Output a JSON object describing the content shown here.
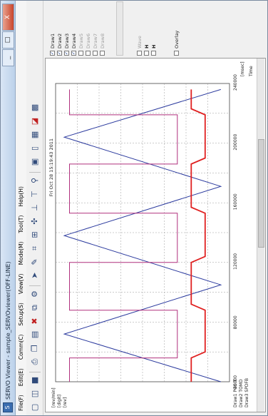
{
  "window": {
    "title": "SERVO Viewer - sample_SERVOviewer(OFF-LINE)",
    "icon_name": "app-icon",
    "buttons": [
      "_",
      "□",
      "X"
    ]
  },
  "menu": [
    "File(F)",
    "Edit(E)",
    "Comm(C)",
    "Setup(S)",
    "View(V)",
    "Mode(M)",
    "Tool(T)",
    "Help(H)"
  ],
  "toolbar": {
    "icons": [
      "new-file-icon",
      "open-icon",
      "save-icon",
      "print-icon",
      "copy-icon",
      "paste-icon",
      "stop-icon",
      "capture-icon",
      "settings-icon",
      "arrow-icon",
      "pen-icon",
      "zoom-fit-icon",
      "scale-icon",
      "move-icon",
      "cursor-icon",
      "cursor2-icon",
      "tune-icon",
      "image-icon",
      "page-icon",
      "window-icon",
      "chart-icon"
    ]
  },
  "plot": {
    "timestamp": "Fri Oct 28 15:19:43 2011",
    "y_labels": [
      "[rev/min]",
      "[digit]",
      "[rev]"
    ],
    "series_labels": [
      "Draw1  POS T",
      "Draw2  TOMD",
      "Draw3  SPDFB"
    ],
    "x_ticks": [
      "40000",
      "80000",
      "120000",
      "160000",
      "200000",
      "240000"
    ],
    "x_unit": "[msec]",
    "x_label": "Time"
  },
  "chart_data": {
    "type": "line",
    "xlim": [
      40000,
      240000
    ],
    "x_ticks": [
      40000,
      80000,
      120000,
      160000,
      200000,
      240000
    ],
    "xlabel": "Time",
    "xunit": "[msec]",
    "series": [
      {
        "name": "Draw1",
        "color": "#2b3a9e",
        "x": [
          40000,
          72000,
          105000,
          138000,
          171000,
          204000,
          236000
        ],
        "y": [
          0.05,
          0.95,
          0.05,
          0.95,
          0.05,
          0.95,
          0.05
        ]
      },
      {
        "name": "Draw2",
        "color": "#b0307d",
        "x": [
          40000,
          56000,
          56000,
          88000,
          88000,
          120000,
          120000,
          153000,
          153000,
          186000,
          186000,
          219000,
          219000,
          236000
        ],
        "y": [
          0.92,
          0.92,
          0.3,
          0.3,
          0.92,
          0.92,
          0.3,
          0.3,
          0.92,
          0.92,
          0.3,
          0.3,
          0.92,
          0.92
        ]
      },
      {
        "name": "Draw3",
        "color": "#e02020",
        "x": [
          40000,
          56000,
          60000,
          88000,
          92000,
          120000,
          124000,
          153000,
          157000,
          186000,
          190000,
          219000,
          223000,
          236000
        ],
        "y": [
          0.22,
          0.22,
          0.14,
          0.14,
          0.22,
          0.22,
          0.14,
          0.14,
          0.22,
          0.22,
          0.14,
          0.14,
          0.22,
          0.22
        ]
      }
    ]
  },
  "draws": [
    {
      "label": "Draw1",
      "checked": true
    },
    {
      "label": "Draw2",
      "checked": true
    },
    {
      "label": "Draw3",
      "checked": true
    },
    {
      "label": "Draw4",
      "checked": true
    },
    {
      "label": "Draw5",
      "checked": false
    },
    {
      "label": "Draw6",
      "checked": false
    },
    {
      "label": "Draw7",
      "checked": false
    },
    {
      "label": "Draw8",
      "checked": false
    }
  ],
  "options": {
    "wave_label": "Wave",
    "overlay_label": "Overlay",
    "cursor_labels": [
      "H",
      "H"
    ]
  }
}
